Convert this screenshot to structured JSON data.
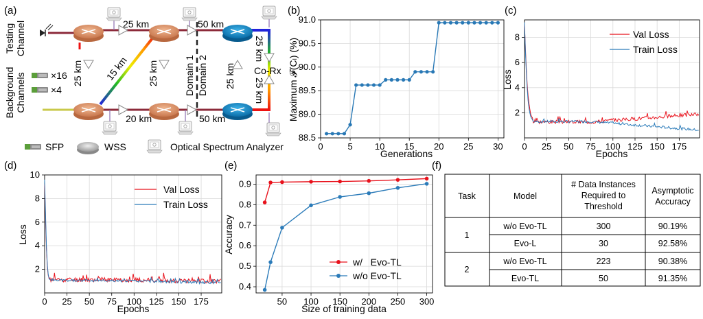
{
  "labels": {
    "a": "(a)",
    "b": "(b)",
    "c": "(c)",
    "d": "(d)",
    "e": "(e)",
    "f": "(f)"
  },
  "diagram": {
    "testing_channel_l1": "Testing",
    "testing_channel_l2": "Channel",
    "background_l1": "Background",
    "background_l2": "Channels",
    "x16": "×16",
    "x4": "×4",
    "span_25km": "25 km",
    "span_50km": "50 km",
    "span_20km": "20 km",
    "span_15km": "15 km",
    "domain1": "Domain 1",
    "domain2": "Domain 2",
    "corx": "Co-Rx",
    "legend_sfp": "SFP",
    "legend_wss": "WSS",
    "legend_osa": "Optical Spectrum  Analyzer"
  },
  "chart_data": [
    {
      "id": "b",
      "type": "line",
      "xlabel": "Generations",
      "ylabel": "Maximum 𝓕(Cₗ) (%)",
      "xlim": [
        0,
        31
      ],
      "ylim": [
        88.5,
        91.0
      ],
      "xticks": [
        0,
        5,
        10,
        15,
        20,
        25,
        30
      ],
      "yticks": [
        88.5,
        89.0,
        89.5,
        90.0,
        90.5,
        91.0
      ],
      "ytick_labels": [
        "88.5",
        "89.0",
        "89.5",
        "90.0",
        "90.5",
        "91.0"
      ],
      "x": [
        1,
        2,
        3,
        4,
        5,
        6,
        7,
        8,
        9,
        10,
        11,
        12,
        13,
        14,
        15,
        16,
        17,
        18,
        19,
        20,
        21,
        22,
        23,
        24,
        25,
        26,
        27,
        28,
        29,
        30
      ],
      "y": [
        88.59,
        88.59,
        88.59,
        88.59,
        88.78,
        89.62,
        89.62,
        89.62,
        89.62,
        89.62,
        89.73,
        89.73,
        89.73,
        89.73,
        89.73,
        89.9,
        89.9,
        89.9,
        89.9,
        90.94,
        90.94,
        90.94,
        90.94,
        90.94,
        90.94,
        90.94,
        90.94,
        90.94,
        90.94,
        90.94
      ],
      "color": "#2878b5"
    },
    {
      "id": "c",
      "type": "line",
      "xlabel": "Epochs",
      "ylabel": "Loss",
      "xlim": [
        0,
        198
      ],
      "ylim": [
        0,
        9.4
      ],
      "xticks": [
        0,
        25,
        50,
        75,
        100,
        125,
        150,
        175
      ],
      "yticks": [
        2,
        4,
        6,
        8
      ],
      "legend": [
        "Val Loss",
        "Train Loss"
      ],
      "series": [
        {
          "name": "Val Loss",
          "color": "#e8111b",
          "start": [
            9.0,
            7.2,
            5.6,
            4.3,
            3.4,
            2.8,
            2.3,
            1.9,
            1.7,
            1.6
          ],
          "mid": 1.28,
          "end": 1.9,
          "noise": 0.14,
          "seed": 3
        },
        {
          "name": "Train Loss",
          "color": "#2b7bb9",
          "start": [
            9.2,
            7.0,
            5.3,
            4.0,
            3.0,
            2.4,
            2.0,
            1.7,
            1.55,
            1.45
          ],
          "mid": 1.3,
          "end": 0.62,
          "noise": 0.1,
          "seed": 7
        }
      ]
    },
    {
      "id": "d",
      "type": "line",
      "xlabel": "Epochs",
      "ylabel": "Loss",
      "xlim": [
        0,
        198
      ],
      "ylim": [
        0,
        10
      ],
      "xticks": [
        0,
        25,
        50,
        75,
        100,
        125,
        150,
        175
      ],
      "yticks": [
        2,
        4,
        6,
        8,
        10
      ],
      "legend": [
        "Val Loss",
        "Train Loss"
      ],
      "series": [
        {
          "name": "Val Loss",
          "color": "#e8111b",
          "start": [
            9.2,
            6.2,
            3.8,
            2.2,
            1.5,
            1.2
          ],
          "mid": 1.12,
          "end": 1.0,
          "noise": 0.2,
          "seed": 11
        },
        {
          "name": "Train Loss",
          "color": "#2b7bb9",
          "start": [
            9.6,
            6.8,
            4.0,
            2.4,
            1.6,
            1.2
          ],
          "mid": 1.05,
          "end": 0.85,
          "noise": 0.1,
          "seed": 5
        }
      ]
    },
    {
      "id": "e",
      "type": "line",
      "xlabel": "Size of training data",
      "ylabel": "Accuracy",
      "xlim": [
        5,
        310
      ],
      "ylim": [
        0.37,
        0.945
      ],
      "xticks": [
        50,
        100,
        150,
        200,
        250,
        300
      ],
      "yticks": [
        0.4,
        0.5,
        0.6,
        0.7,
        0.8,
        0.9
      ],
      "legend": [
        "w/   Evo-TL",
        "w/o Evo-TL"
      ],
      "series": [
        {
          "name": "w/   Evo-TL",
          "color": "#e8111b",
          "x": [
            20,
            30,
            50,
            100,
            150,
            200,
            250,
            300
          ],
          "y": [
            0.811,
            0.908,
            0.91,
            0.912,
            0.913,
            0.916,
            0.921,
            0.927
          ]
        },
        {
          "name": "w/o Evo-TL",
          "color": "#2b7bb9",
          "x": [
            20,
            30,
            50,
            100,
            150,
            200,
            250,
            300
          ],
          "y": [
            0.385,
            0.52,
            0.688,
            0.797,
            0.838,
            0.856,
            0.882,
            0.902
          ]
        }
      ]
    }
  ],
  "table": {
    "headers": [
      "Task",
      "Model",
      "# Data Instances Required to Threshold",
      "Asymptotic Accuracy"
    ],
    "header_lines": [
      [
        "Task"
      ],
      [
        "Model"
      ],
      [
        "# Data Instances",
        "Required to",
        "Threshold"
      ],
      [
        "Asymptotic",
        "Accuracy"
      ]
    ],
    "rows": [
      {
        "task": "1",
        "model": "w/o Evo-TL",
        "instances": "300",
        "accuracy": "90.19%"
      },
      {
        "task": "1",
        "model": "Evo-L",
        "instances": "30",
        "accuracy": "92.58%"
      },
      {
        "task": "2",
        "model": "w/o Evo-TL",
        "instances": "223",
        "accuracy": "90.38%"
      },
      {
        "task": "2",
        "model": "Evo-TL",
        "instances": "50",
        "accuracy": "91.35%"
      }
    ]
  }
}
